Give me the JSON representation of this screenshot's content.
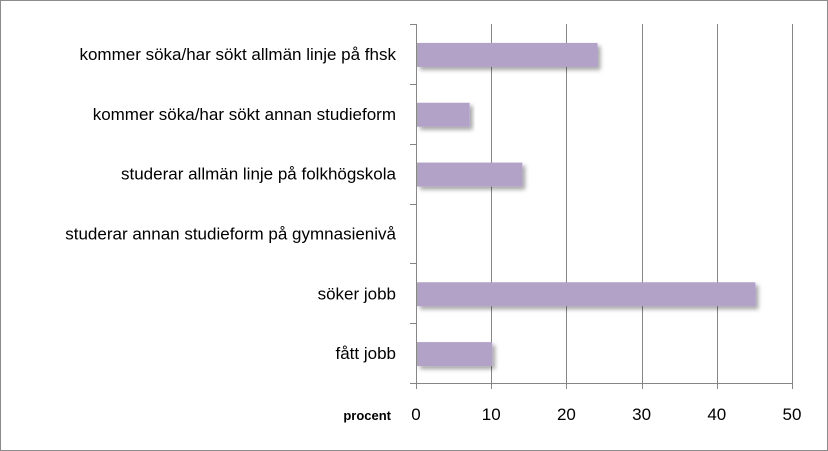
{
  "chart_data": {
    "type": "bar",
    "orientation": "horizontal",
    "categories": [
      "kommer söka/har sökt allmän linje på fhsk",
      "kommer söka/har sökt annan studieform",
      "studerar allmän linje på folkhögskola",
      "studerar annan studieform på gymnasienivå",
      "söker jobb",
      "fått jobb"
    ],
    "values": [
      24,
      7,
      14,
      0,
      45,
      10
    ],
    "xlabel": "procent",
    "xlim": [
      0,
      50
    ],
    "xticks": [
      0,
      10,
      20,
      30,
      40,
      50
    ],
    "grid": true,
    "legend": "none",
    "bar_color": "#b3a2c7"
  }
}
